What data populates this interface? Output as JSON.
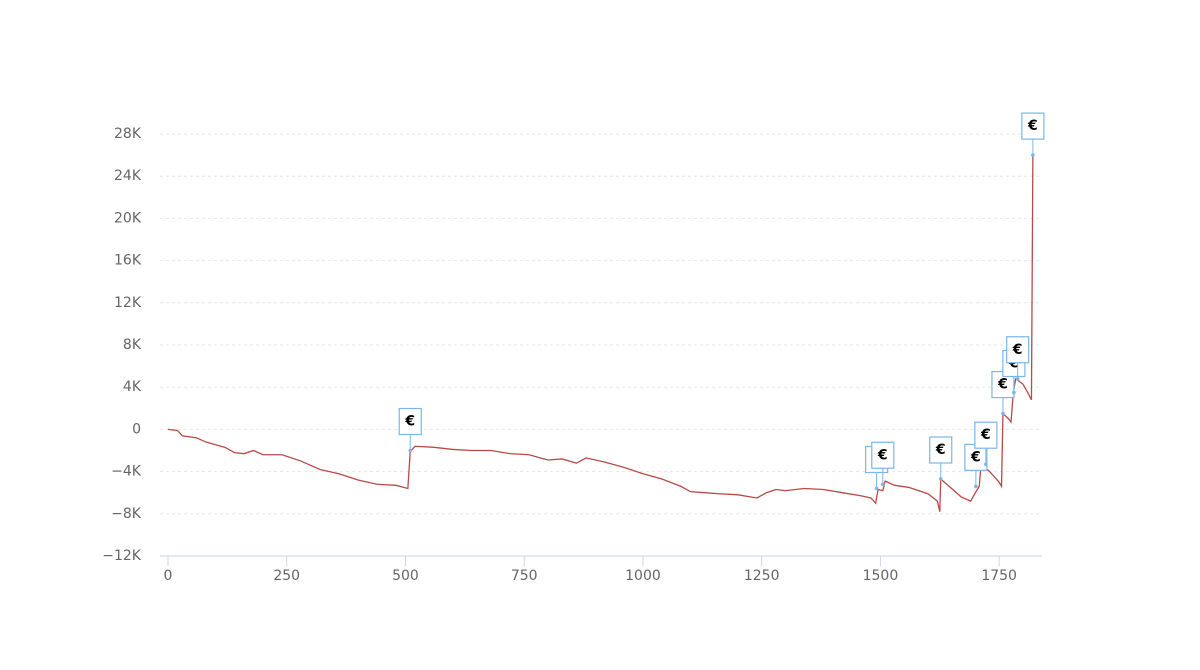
{
  "chart_data": {
    "type": "line",
    "x": [
      0,
      20,
      30,
      60,
      80,
      120,
      140,
      160,
      180,
      200,
      240,
      280,
      320,
      360,
      400,
      440,
      480,
      505,
      510,
      520,
      560,
      600,
      640,
      680,
      720,
      760,
      800,
      830,
      860,
      880,
      920,
      960,
      1000,
      1040,
      1080,
      1100,
      1130,
      1160,
      1200,
      1240,
      1260,
      1280,
      1300,
      1340,
      1380,
      1420,
      1460,
      1480,
      1490,
      1495,
      1505,
      1510,
      1530,
      1560,
      1600,
      1620,
      1625,
      1627,
      1650,
      1670,
      1690,
      1700,
      1708,
      1712,
      1730,
      1750,
      1755,
      1758,
      1770,
      1775,
      1780,
      1785,
      1800,
      1810,
      1818,
      1821
    ],
    "series": [
      {
        "color": "#b94a48",
        "values": [
          0,
          -100,
          -600,
          -800,
          -1200,
          -1700,
          -2200,
          -2300,
          -2000,
          -2400,
          -2400,
          -3000,
          -3800,
          -4200,
          -4800,
          -5200,
          -5300,
          -5600,
          -2100,
          -1600,
          -1700,
          -1900,
          -2000,
          -2000,
          -2300,
          -2400,
          -2900,
          -2800,
          -3200,
          -2700,
          -3100,
          -3600,
          -4200,
          -4700,
          -5400,
          -5900,
          -6000,
          -6100,
          -6200,
          -6500,
          -6000,
          -5700,
          -5800,
          -5600,
          -5700,
          -6000,
          -6300,
          -6500,
          -7000,
          -5700,
          -5800,
          -4900,
          -5300,
          -5500,
          -6100,
          -6800,
          -7800,
          -4700,
          -5600,
          -6400,
          -6800,
          -6000,
          -5400,
          -3300,
          -4000,
          -5000,
          -5400,
          1500,
          1000,
          700,
          3600,
          4800,
          4300,
          3500,
          2800,
          26000
        ]
      }
    ],
    "flags": [
      {
        "x": 510,
        "y": -2000,
        "text": "€"
      },
      {
        "x": 1492,
        "y": -5600,
        "text": "€"
      },
      {
        "x": 1505,
        "y": -5200,
        "text": "€"
      },
      {
        "x": 1627,
        "y": -4700,
        "text": "€"
      },
      {
        "x": 1701,
        "y": -5400,
        "text": "€"
      },
      {
        "x": 1722,
        "y": -3300,
        "text": "€"
      },
      {
        "x": 1758,
        "y": 1500,
        "text": "€"
      },
      {
        "x": 1781,
        "y": 3500,
        "text": "€"
      },
      {
        "x": 1789,
        "y": 4800,
        "text": "€"
      },
      {
        "x": 1821,
        "y": 26000,
        "text": "€"
      }
    ],
    "flag_color": "#7cb5ec",
    "xlim": [
      0,
      1836
    ],
    "xticks": [
      0,
      250,
      500,
      750,
      1000,
      1250,
      1500,
      1750
    ],
    "ylim": [
      -12000,
      28000
    ],
    "yticks": [
      {
        "value": -12000,
        "label": "−12K"
      },
      {
        "value": -8000,
        "label": "−8K"
      },
      {
        "value": -4000,
        "label": "−4K"
      },
      0,
      {
        "value": 4000,
        "label": "4K"
      },
      {
        "value": 8000,
        "label": "8K"
      },
      {
        "value": 12000,
        "label": "12K"
      },
      {
        "value": 16000,
        "label": "16K"
      },
      {
        "value": 20000,
        "label": "20K"
      },
      {
        "value": 24000,
        "label": "24K"
      },
      {
        "value": 28000,
        "label": "28K"
      }
    ],
    "grid": true
  }
}
